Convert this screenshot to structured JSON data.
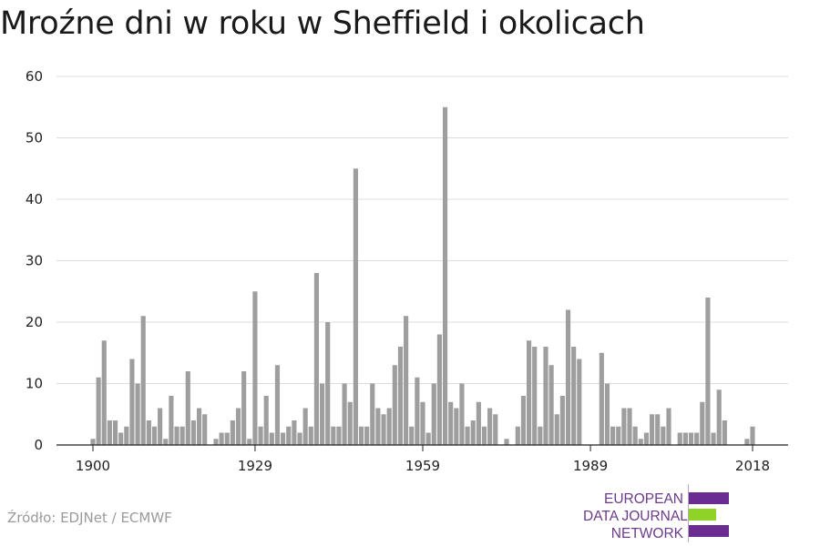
{
  "title": "Mroźne dni w roku w Sheffield i okolicach",
  "source": "Źródło: EDJNet / ECMWF",
  "logo": {
    "lines": [
      "EUROPEAN",
      "DATA JOURNALISM",
      "NETWORK"
    ],
    "colors": [
      "#6b2c91",
      "#8ed326",
      "#6b2c91"
    ]
  },
  "chart_data": {
    "type": "bar",
    "title": "Mroźne dni w roku w Sheffield i okolicach",
    "xlabel": "",
    "ylabel": "",
    "x_start": 1900,
    "x_end": 2018,
    "xticks": [
      1900,
      1929,
      1959,
      1989,
      2018
    ],
    "yticks": [
      0,
      10,
      20,
      30,
      40,
      50,
      60
    ],
    "ylim": [
      0,
      60
    ],
    "grid": true,
    "bar_color": "#9e9e9e",
    "values": [
      1,
      11,
      17,
      4,
      4,
      2,
      3,
      14,
      10,
      21,
      4,
      3,
      6,
      1,
      8,
      3,
      3,
      12,
      4,
      6,
      5,
      0,
      1,
      2,
      2,
      4,
      6,
      12,
      1,
      25,
      3,
      8,
      2,
      13,
      2,
      3,
      4,
      2,
      6,
      3,
      28,
      10,
      20,
      3,
      3,
      10,
      7,
      45,
      3,
      3,
      10,
      6,
      5,
      6,
      13,
      16,
      21,
      3,
      11,
      7,
      2,
      10,
      18,
      55,
      7,
      6,
      10,
      3,
      4,
      7,
      3,
      6,
      5,
      0,
      1,
      0,
      3,
      8,
      17,
      16,
      3,
      16,
      13,
      5,
      8,
      22,
      16,
      14,
      0,
      0,
      0,
      15,
      10,
      3,
      3,
      6,
      6,
      3,
      1,
      2,
      5,
      5,
      3,
      6,
      0,
      2,
      2,
      2,
      2,
      7,
      24,
      2,
      9,
      4,
      0,
      0,
      0,
      1,
      3
    ]
  }
}
